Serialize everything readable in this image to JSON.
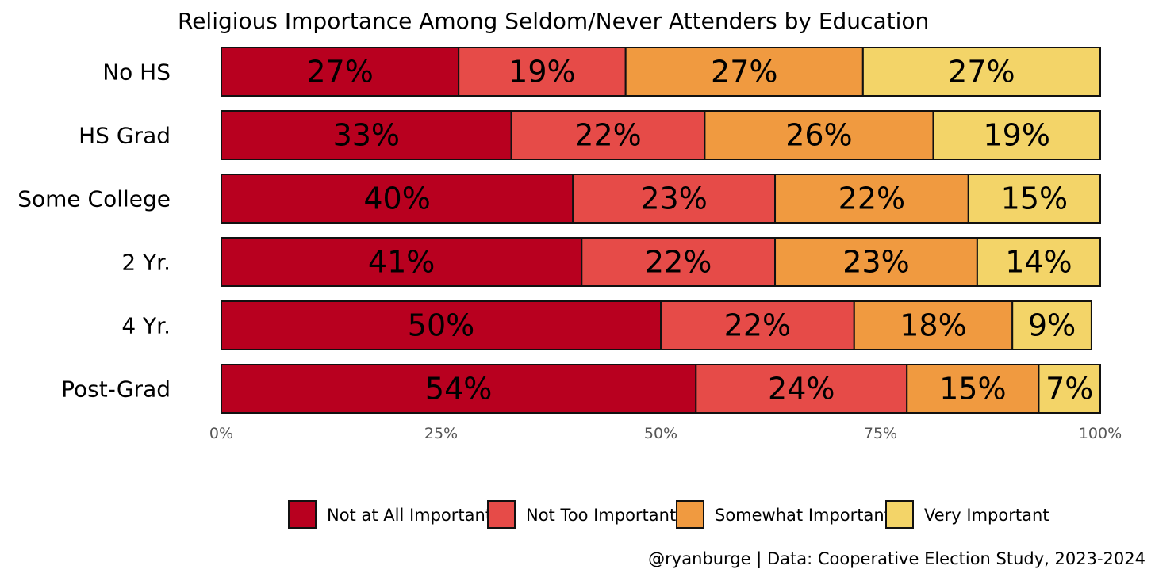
{
  "chart_data": {
    "type": "bar",
    "orientation": "horizontal",
    "stacked": true,
    "title": "Religious Importance Among Seldom/Never Attenders by Education",
    "categories": [
      "No HS",
      "HS Grad",
      "Some College",
      "2 Yr.",
      "4 Yr.",
      "Post-Grad"
    ],
    "series": [
      {
        "name": "Not at All Important",
        "color": "#B8001F",
        "values": [
          27,
          33,
          40,
          41,
          50,
          54
        ],
        "labels": [
          "27%",
          "33%",
          "40%",
          "41%",
          "50%",
          "54%"
        ]
      },
      {
        "name": "Not Too Important",
        "color": "#E64B48",
        "values": [
          19,
          22,
          23,
          22,
          22,
          24
        ],
        "labels": [
          "19%",
          "22%",
          "23%",
          "22%",
          "22%",
          "24%"
        ]
      },
      {
        "name": "Somewhat Important",
        "color": "#F09A40",
        "values": [
          27,
          26,
          22,
          23,
          18,
          15
        ],
        "labels": [
          "27%",
          "26%",
          "22%",
          "23%",
          "18%",
          "15%"
        ]
      },
      {
        "name": "Very Important",
        "color": "#F3D468",
        "values": [
          27,
          19,
          15,
          14,
          9,
          7
        ],
        "labels": [
          "27%",
          "19%",
          "15%",
          "14%",
          "9%",
          "7%"
        ]
      }
    ],
    "xlim": [
      0,
      100
    ],
    "xticks": [
      0,
      25,
      50,
      75,
      100
    ],
    "xtick_labels": [
      "0%",
      "25%",
      "50%",
      "75%",
      "100%"
    ],
    "xlabel": "",
    "ylabel": "",
    "grid": false,
    "legend_position": "bottom"
  },
  "caption": "@ryanburge | Data: Cooperative Election Study, 2023-2024"
}
